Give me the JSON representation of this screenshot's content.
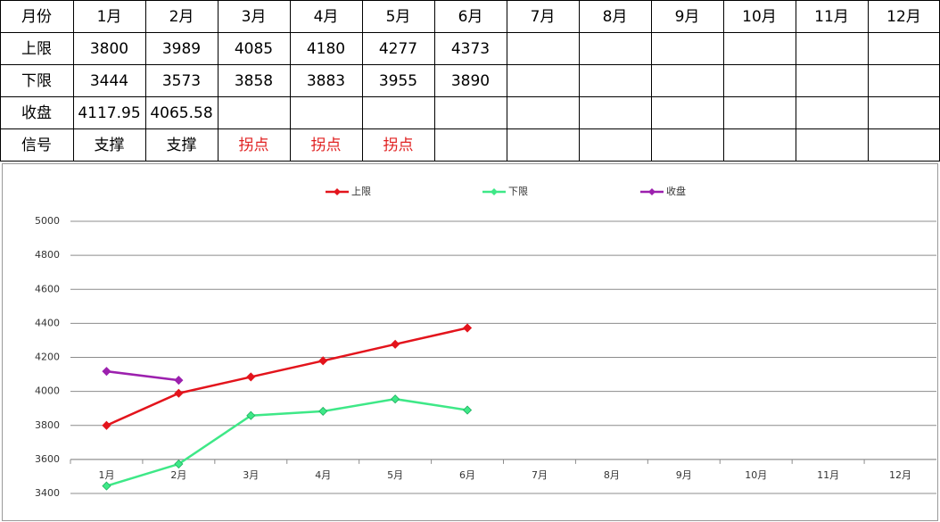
{
  "table": {
    "header": [
      "月份",
      "1月",
      "2月",
      "3月",
      "4月",
      "5月",
      "6月",
      "7月",
      "8月",
      "9月",
      "10月",
      "11月",
      "12月"
    ],
    "rows": [
      {
        "label": "上限",
        "values": [
          3800,
          3989,
          4085,
          4180,
          4277,
          4373
        ]
      },
      {
        "label": "下限",
        "values": [
          3444,
          3573,
          3858,
          3883,
          3955,
          3890
        ]
      },
      {
        "label": "收盘",
        "values": [
          4117.95,
          4065.58
        ]
      },
      {
        "label": "信号",
        "values": [
          "支撑",
          "支撑",
          "拐点",
          "拐点",
          "拐点"
        ],
        "colors": [
          "#000000",
          "#000000",
          "#e02020",
          "#e02020",
          "#e02020"
        ]
      }
    ]
  },
  "chart_data": {
    "type": "line",
    "categories": [
      "1月",
      "2月",
      "3月",
      "4月",
      "5月",
      "6月",
      "7月",
      "8月",
      "9月",
      "10月",
      "11月",
      "12月"
    ],
    "series": [
      {
        "name": "上限",
        "color": "#e3141c",
        "values": [
          3800,
          3989,
          4085,
          4180,
          4277,
          4373,
          null,
          null,
          null,
          null,
          null,
          null
        ]
      },
      {
        "name": "下限",
        "color": "#3ee887",
        "values": [
          3444,
          3573,
          3858,
          3883,
          3955,
          3890,
          null,
          null,
          null,
          null,
          null,
          null
        ]
      },
      {
        "name": "收盘",
        "color": "#9c20ae",
        "values": [
          4117.95,
          4065.58,
          null,
          null,
          null,
          null,
          null,
          null,
          null,
          null,
          null,
          null
        ]
      }
    ],
    "ylim": [
      3400,
      5000
    ],
    "yticks": [
      3400,
      3600,
      3800,
      4000,
      4200,
      4400,
      4600,
      4800,
      5000
    ],
    "grid": true,
    "legend": "top",
    "xaxis_crosses": 3600
  }
}
